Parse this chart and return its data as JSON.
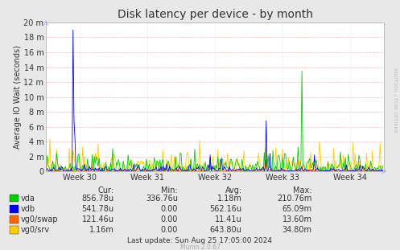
{
  "title": "Disk latency per device - by month",
  "ylabel": "Average IO Wait (seconds)",
  "background_color": "#e8e8e8",
  "plot_bg_color": "#ffffff",
  "grid_color_h": "#ff9999",
  "grid_color_v": "#aaaaff",
  "x_ticks_labels": [
    "Week 30",
    "Week 31",
    "Week 32",
    "Week 33",
    "Week 34"
  ],
  "y_ticks_labels": [
    "0",
    "2 m",
    "4 m",
    "6 m",
    "8 m",
    "10 m",
    "12 m",
    "14 m",
    "16 m",
    "18 m",
    "20 m"
  ],
  "y_ticks_values": [
    0,
    0.002,
    0.004,
    0.006,
    0.008,
    0.01,
    0.012,
    0.014,
    0.016,
    0.018,
    0.02
  ],
  "ylim": [
    0,
    0.02
  ],
  "series": {
    "vda": {
      "color": "#00cc00"
    },
    "vdb": {
      "color": "#0000ff"
    },
    "vg0/swap": {
      "color": "#ff6600"
    },
    "vg0/srv": {
      "color": "#ffcc00"
    }
  },
  "legend_table": {
    "headers": [
      "Cur:",
      "Min:",
      "Avg:",
      "Max:"
    ],
    "rows": [
      [
        "vda",
        "856.78u",
        "336.76u",
        "1.18m",
        "210.76m"
      ],
      [
        "vdb",
        "541.78u",
        "0.00",
        "562.16u",
        "65.09m"
      ],
      [
        "vg0/swap",
        "121.46u",
        "0.00",
        "11.41u",
        "13.60m"
      ],
      [
        "vg0/srv",
        "1.16m",
        "0.00",
        "643.80u",
        "34.80m"
      ]
    ],
    "row_colors": [
      "vda",
      "vdb",
      "vg0/swap",
      "vg0/srv"
    ]
  },
  "footer": "Last update: Sun Aug 25 17:05:00 2024",
  "watermark": "Munin 2.0.67",
  "rrdtool_label": "RRDTOOL / TOBI OETIKER",
  "title_fontsize": 10,
  "axis_fontsize": 7,
  "legend_fontsize": 7,
  "ylabel_fontsize": 7
}
